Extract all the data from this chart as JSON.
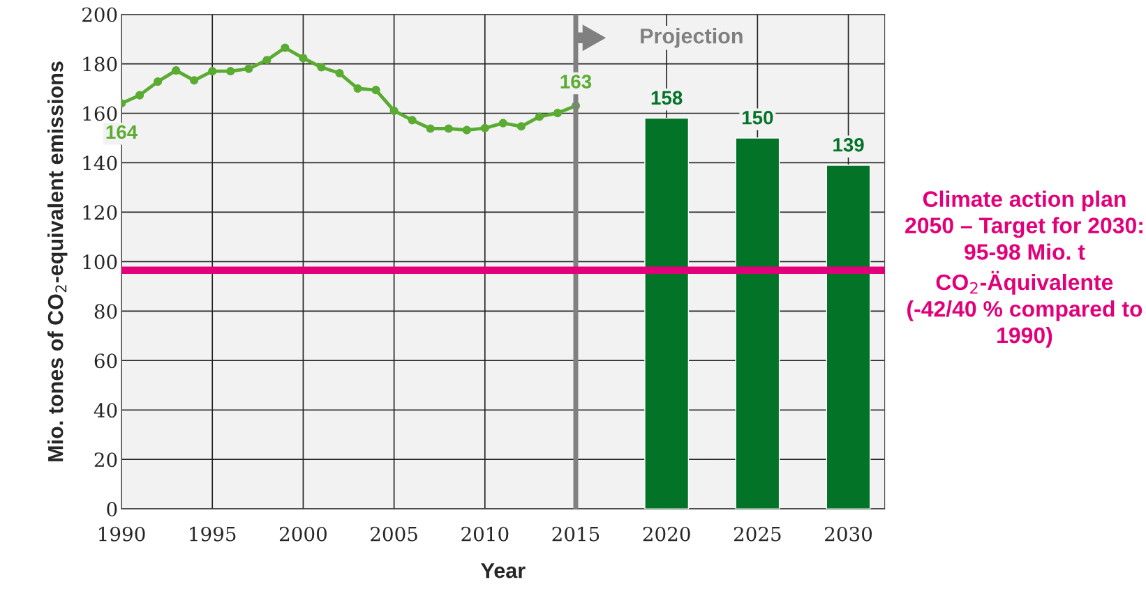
{
  "chart_data": {
    "type": "line",
    "xlabel": "Year",
    "ylabel": "Mio. tones of CO$_{2}$-equivalent emissions",
    "xlim": [
      1990,
      2032
    ],
    "xticks": [
      1990,
      1995,
      2000,
      2005,
      2010,
      2015,
      2020,
      2025,
      2030
    ],
    "ylim": [
      0,
      200
    ],
    "yticks": [
      0,
      20,
      40,
      60,
      80,
      100,
      120,
      140,
      160,
      180,
      200
    ],
    "grid": true,
    "marker": "circle",
    "series": [
      {
        "color": "#5aab32",
        "x": [
          1990,
          1991,
          1992,
          1993,
          1994,
          1995,
          1996,
          1997,
          1998,
          1999,
          2000,
          2001,
          2002,
          2003,
          2004,
          2005,
          2006,
          2007,
          2008,
          2009,
          2010,
          2011,
          2012,
          2013,
          2014,
          2015
        ],
        "values": [
          164,
          167.3,
          172.8,
          177.3,
          173.3,
          177,
          177,
          178,
          181.5,
          186.5,
          182.3,
          178.6,
          176.2,
          170,
          169.4,
          161,
          157.2,
          153.8,
          153.8,
          153.2,
          154,
          156,
          154.7,
          158.6,
          160.1,
          163
        ],
        "value_labels": [
          "164",
          null,
          null,
          null,
          null,
          null,
          null,
          null,
          null,
          null,
          null,
          null,
          null,
          null,
          null,
          null,
          null,
          null,
          null,
          null,
          null,
          null,
          null,
          null,
          null,
          "163"
        ]
      },
      {
        "type": "bar",
        "color": "#037328",
        "x": [
          2020,
          2025,
          2030
        ],
        "values": [
          158,
          150,
          139
        ],
        "value_labels": [
          "158",
          "150",
          "139"
        ]
      }
    ],
    "ref_lines": [
      {
        "axis": "x",
        "value": 2015,
        "label": "Projection",
        "color": "#808080"
      }
    ],
    "bands": [
      {
        "axis": "y",
        "from": 95,
        "to": 98,
        "label": "Climate action plan 2050 – Target for 2030: 95-98 Mio. t CO$_{2}$-Äquivalente (-42/40 % compared to 1990)",
        "color": "#e2007a"
      }
    ]
  }
}
